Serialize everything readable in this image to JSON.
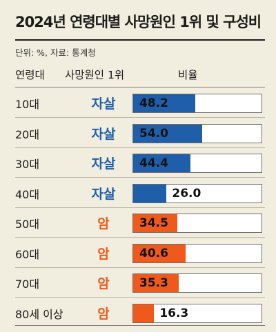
{
  "title": "2024년 연령대별 사망원인 1위 및 구성비",
  "meta": "단위: %, 자료: 통계청",
  "headers": {
    "age": "연령대",
    "cause": "사망원인 1위",
    "ratio": "비율"
  },
  "colors": {
    "suicide": "#1f5fa9",
    "cancer": "#ef5a1c",
    "background": "#f2eedf"
  },
  "chart_data": {
    "type": "bar",
    "orientation": "horizontal",
    "title": "2024년 연령대별 사망원인 1위 및 구성비",
    "unit": "%",
    "source": "통계청",
    "xlim": [
      0,
      100
    ],
    "categories": [
      "10대",
      "20대",
      "30대",
      "40대",
      "50대",
      "60대",
      "70대",
      "80세 이상"
    ],
    "causes": [
      "자살",
      "자살",
      "자살",
      "자살",
      "암",
      "암",
      "암",
      "암"
    ],
    "values": [
      48.2,
      54.0,
      44.4,
      26.0,
      34.5,
      40.6,
      35.3,
      16.3
    ],
    "value_labels": [
      "48.2",
      "54.0",
      "44.4",
      "26.0",
      "34.5",
      "40.6",
      "35.3",
      "16.3"
    ]
  }
}
